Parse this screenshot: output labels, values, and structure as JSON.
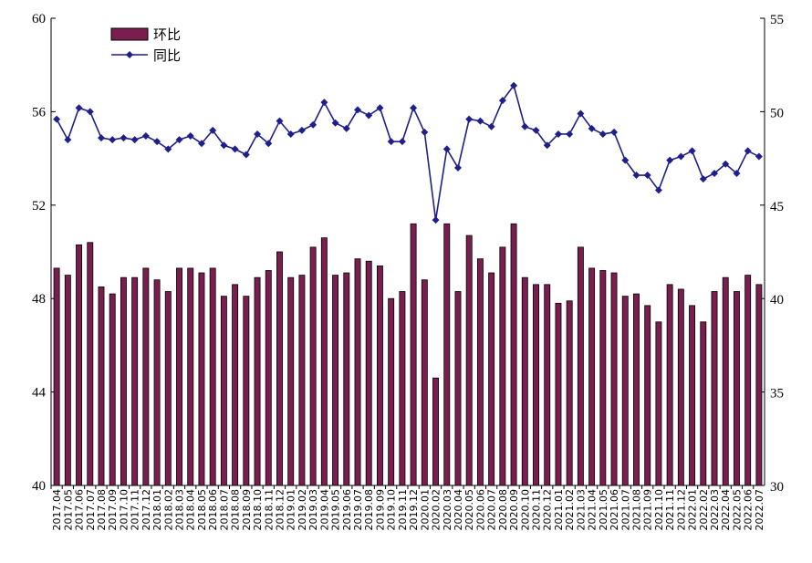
{
  "chart_data": {
    "type": "bar+line",
    "title": "",
    "xlabel": "",
    "ylabel_left": "",
    "ylabel_right": "",
    "ylim_left": [
      40,
      60
    ],
    "yticks_left": [
      40,
      44,
      48,
      52,
      56,
      60
    ],
    "ylim_right": [
      30,
      55
    ],
    "yticks_right": [
      30,
      35,
      40,
      45,
      50,
      55
    ],
    "grid": false,
    "legend_position": "top-left",
    "categories": [
      "2017.04",
      "2017.05",
      "2017.06",
      "2017.07",
      "2017.08",
      "2017.09",
      "2017.10",
      "2017.11",
      "2017.12",
      "2018.01",
      "2018.02",
      "2018.03",
      "2018.04",
      "2018.05",
      "2018.06",
      "2018.07",
      "2018.08",
      "2018.09",
      "2018.10",
      "2018.11",
      "2018.12",
      "2019.01",
      "2019.02",
      "2019.03",
      "2019.04",
      "2019.05",
      "2019.06",
      "2019.07",
      "2019.08",
      "2019.09",
      "2019.10",
      "2019.11",
      "2019.12",
      "2020.01",
      "2020.02",
      "2020.03",
      "2020.04",
      "2020.05",
      "2020.06",
      "2020.07",
      "2020.08",
      "2020.09",
      "2020.10",
      "2020.11",
      "2020.12",
      "2021.01",
      "2021.02",
      "2021.03",
      "2021.04",
      "2021.05",
      "2021.06",
      "2021.07",
      "2021.08",
      "2021.09",
      "2021.10",
      "2021.11",
      "2021.12",
      "2022.01",
      "2022.02",
      "2022.03",
      "2022.04",
      "2022.05",
      "2022.06",
      "2022.07"
    ],
    "series": [
      {
        "name": "环比",
        "type": "bar",
        "axis": "left",
        "color": "#7a1e4f",
        "values": [
          49.3,
          49.0,
          50.3,
          50.4,
          48.5,
          48.2,
          48.9,
          48.9,
          49.3,
          48.8,
          48.3,
          49.3,
          49.3,
          49.1,
          49.3,
          48.1,
          48.6,
          48.1,
          48.9,
          49.2,
          50.0,
          48.9,
          49.0,
          50.2,
          50.6,
          49.0,
          49.1,
          49.7,
          49.6,
          49.4,
          48.0,
          48.3,
          51.2,
          48.8,
          44.6,
          51.2,
          48.3,
          50.7,
          49.7,
          49.1,
          50.2,
          51.2,
          48.9,
          48.6,
          48.6,
          47.8,
          47.9,
          50.2,
          49.3,
          49.2,
          49.1,
          48.1,
          48.2,
          47.7,
          47.0,
          48.6,
          48.4,
          47.7,
          47.0,
          48.3,
          48.9,
          48.3,
          49.0,
          48.6
        ]
      },
      {
        "name": "同比",
        "type": "line",
        "axis": "right",
        "color": "#1f1f8c",
        "values": [
          49.6,
          48.5,
          50.2,
          50.0,
          48.6,
          48.5,
          48.6,
          48.5,
          48.7,
          48.4,
          48.0,
          48.5,
          48.7,
          48.3,
          49.0,
          48.2,
          48.0,
          47.7,
          48.8,
          48.3,
          49.5,
          48.8,
          49.0,
          49.3,
          50.5,
          49.4,
          49.1,
          50.1,
          49.8,
          50.2,
          48.4,
          48.4,
          50.2,
          48.9,
          44.2,
          48.0,
          47.0,
          49.6,
          49.5,
          49.2,
          50.6,
          51.4,
          49.2,
          49.0,
          48.2,
          48.8,
          48.8,
          49.9,
          49.1,
          48.8,
          48.9,
          47.4,
          46.6,
          46.6,
          45.8,
          47.4,
          47.6,
          47.9,
          46.4,
          46.7,
          47.2,
          46.7,
          47.9,
          47.6
        ]
      }
    ]
  }
}
